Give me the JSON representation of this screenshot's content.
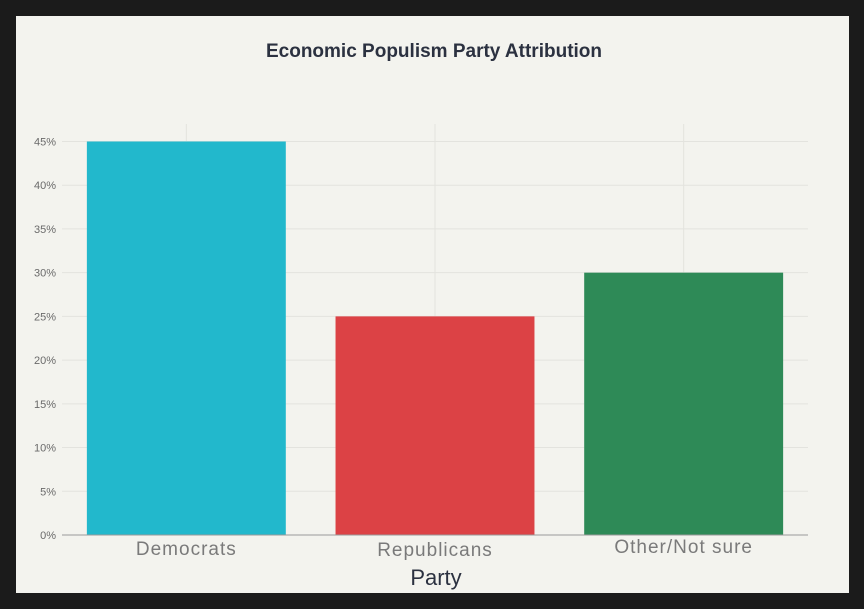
{
  "chart_data": {
    "type": "bar",
    "title": "Economic Populism Party Attribution",
    "xlabel": "Party",
    "ylabel": "",
    "categories": [
      "Democrats",
      "Republicans",
      "Other/Not sure"
    ],
    "values": [
      45,
      25,
      30
    ],
    "ylim": [
      0,
      47
    ],
    "yticks": [
      0,
      5,
      10,
      15,
      20,
      25,
      30,
      35,
      40,
      45
    ],
    "ytick_labels": [
      "0%",
      "5%",
      "10%",
      "15%",
      "20%",
      "25%",
      "30%",
      "35%",
      "40%",
      "45%"
    ],
    "grid": true,
    "legend": "none",
    "colors": [
      "#22b8cc",
      "#dc4245",
      "#2e8a57"
    ],
    "background": "#f3f3ee"
  }
}
